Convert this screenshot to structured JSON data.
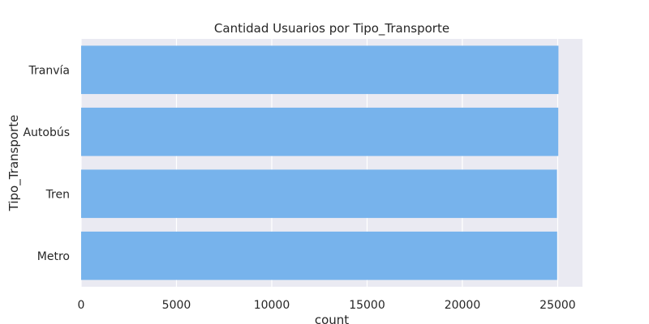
{
  "chart_data": {
    "type": "bar",
    "orientation": "horizontal",
    "title": "Cantidad Usuarios por Tipo_Transporte",
    "xlabel": "count",
    "ylabel": "Tipo_Transporte",
    "categories": [
      "Tranvía",
      "Autobús",
      "Tren",
      "Metro"
    ],
    "values": [
      25040,
      25030,
      24960,
      24970
    ],
    "xlim": [
      0,
      26300
    ],
    "xticks": [
      0,
      5000,
      10000,
      15000,
      20000,
      25000
    ],
    "grid": true,
    "legend": "none",
    "colors": {
      "bar": "#77b3ec",
      "plot_background": "#eaeaf2",
      "grid": "#ffffff",
      "text": "#262626"
    }
  }
}
